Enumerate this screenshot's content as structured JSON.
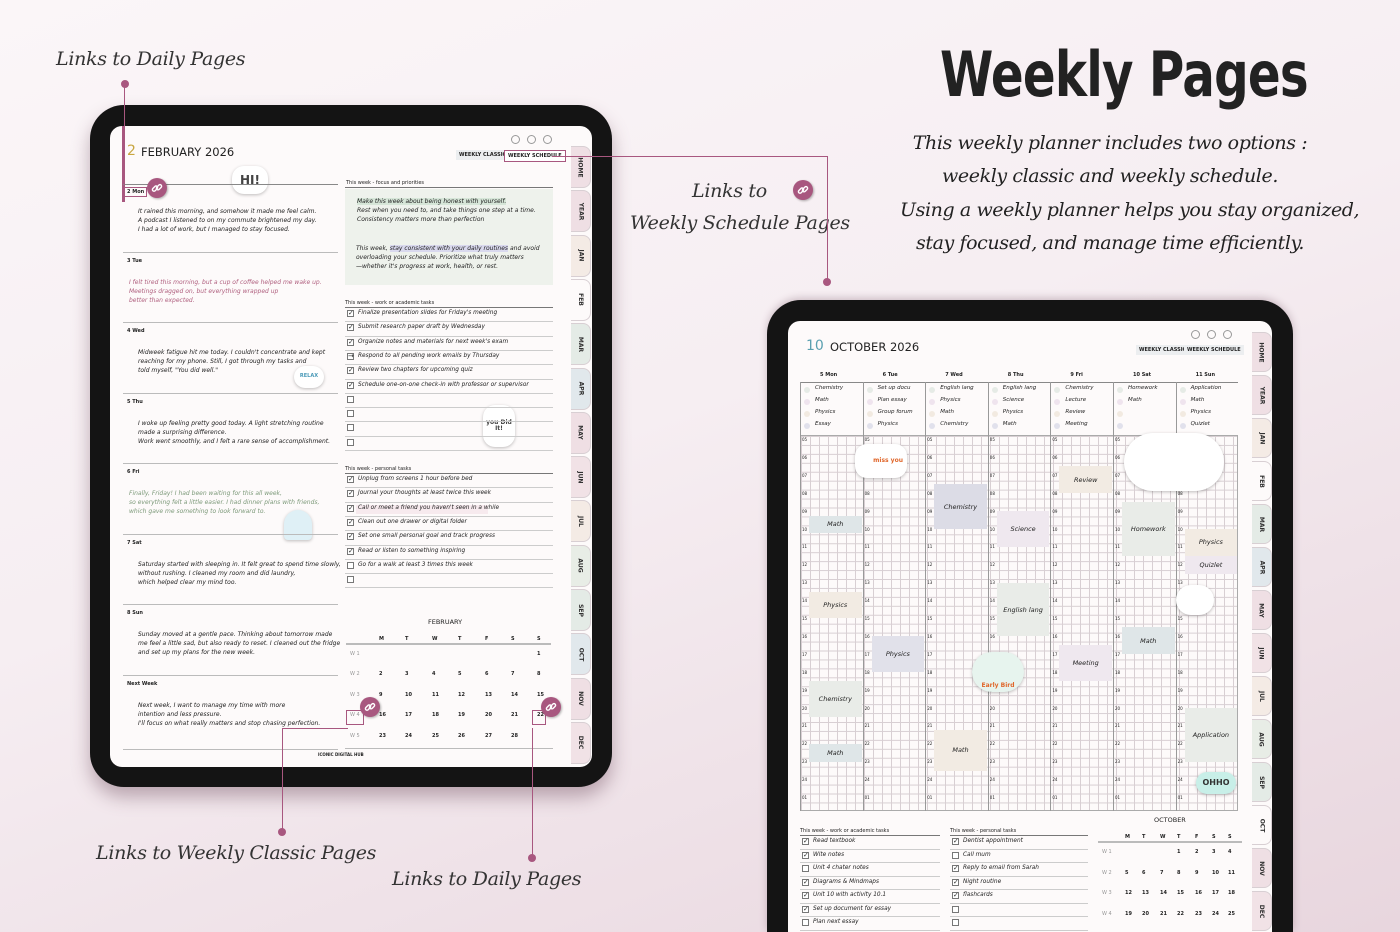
{
  "headline": {
    "title": "Weekly Pages",
    "lines": [
      "This weekly planner includes two options :",
      "weekly classic and weekly schedule.",
      "Using a weekly planner helps you stay organized,",
      "stay focused, and manage time efficiently."
    ]
  },
  "annotations": {
    "daily_top": "Links to Daily Pages",
    "schedule_1": "Links to",
    "schedule_2": "Weekly Schedule Pages",
    "classic": "Links to Weekly Classic Pages",
    "daily_bottom": "Links to Daily Pages"
  },
  "colors": {
    "accent": "#a8577f",
    "gold": "#c8a640",
    "teal": "#5aa0b0",
    "tue_text": "#b0607f",
    "fri_text": "#7d9a7a"
  },
  "stickers": [
    "HI!",
    "you Did It!",
    "RELAX",
    "OHHO",
    "Early Bird",
    "miss you"
  ],
  "tabs": [
    "HOME",
    "YEAR",
    "JAN",
    "FEB",
    "MAR",
    "APR",
    "MAY",
    "JUN",
    "JUL",
    "AUG",
    "SEP",
    "OCT",
    "NOV",
    "DEC"
  ],
  "classic": {
    "week_num": "2",
    "month_year": "FEBRUARY 2026",
    "active_tab": "FEB",
    "view_buttons": [
      "WEEKLY CLASSIC",
      "WEEKLY SCHEDULE"
    ],
    "days": [
      {
        "label": "2 Mon",
        "color": "dark",
        "lines": [
          "It rained this morning, and somehow it made me feel calm.",
          "A podcast I listened to on my commute brightened my day.",
          "I had a lot of work, but I managed to stay focused."
        ]
      },
      {
        "label": "3 Tue",
        "color": "tue",
        "lines": [
          "I felt tired this morning, but a cup of coffee helped me wake up.",
          "Meetings dragged on, but everything wrapped up",
          "better than expected."
        ]
      },
      {
        "label": "4 Wed",
        "color": "dark",
        "lines": [
          "Midweek fatigue hit me today. I couldn't concentrate and kept",
          "reaching for my phone. Still, I got through my tasks and",
          "told myself, \"You did well.\""
        ]
      },
      {
        "label": "5 Thu",
        "color": "dark",
        "lines": [
          "I woke up feeling pretty good today. A light stretching routine",
          "made a surprising difference.",
          "Work went smoothly, and I felt a rare sense of accomplishment."
        ]
      },
      {
        "label": "6 Fri",
        "color": "fri",
        "lines": [
          "Finally, Friday! I had been waiting for this all week,",
          "so everything felt a little easier. I had dinner plans with friends,",
          "which gave me something to look forward to."
        ]
      },
      {
        "label": "7 Sat",
        "color": "dark",
        "lines": [
          "Saturday started with sleeping in. It felt great to spend time slowly,",
          "without rushing. I cleaned my room and did laundry,",
          "which helped clear my mind too."
        ]
      },
      {
        "label": "8 Sun",
        "color": "dark",
        "lines": [
          "Sunday moved at a gentle pace. Thinking about tomorrow made",
          "me feel a little sad, but also ready to reset. I cleaned out the fridge",
          "and set up my plans for the new week."
        ]
      },
      {
        "label": "Next Week",
        "color": "dark",
        "lines": [
          "Next week, I want to manage my time with more",
          "intention and less pressure.",
          "I'll focus on what really matters and stop chasing perfection."
        ]
      }
    ],
    "focus": {
      "heading": "This week - focus and priorities",
      "p1": [
        "Make this week about being honest with yourself.",
        "Rest when you need to, and take things one step at a time.",
        "Consistency matters more than perfection"
      ],
      "p2_pre": "This week, ",
      "p2_mark": "stay consistent with your daily routines",
      "p2_post": " and avoid",
      "p2": [
        "overloading your schedule. Prioritize what truly matters",
        "—whether it's progress at work, health, or rest."
      ]
    },
    "work_tasks": {
      "heading": "This week - work or academic tasks",
      "items": [
        {
          "text": "Finalize presentation slides for Friday's meeting",
          "state": "done"
        },
        {
          "text": "Submit research paper draft by Wednesday",
          "state": "done"
        },
        {
          "text": "Organize notes and materials for next week's exam",
          "state": "done"
        },
        {
          "text": "Respond to all pending work emails by Thursday",
          "state": "migrated"
        },
        {
          "text": "Review two chapters for upcoming quiz",
          "state": "done"
        },
        {
          "text": "Schedule one-on-one check-in with professor or supervisor",
          "state": "done"
        },
        {
          "text": "",
          "state": "open"
        },
        {
          "text": "",
          "state": "open"
        },
        {
          "text": "",
          "state": "open"
        },
        {
          "text": "",
          "state": "open"
        }
      ]
    },
    "personal_tasks": {
      "heading": "This week - personal tasks",
      "items": [
        {
          "text": "Unplug from screens 1 hour before bed",
          "state": "done"
        },
        {
          "text": "Journal your thoughts at least twice this week",
          "state": "done"
        },
        {
          "text": "Call or meet a friend you haven't seen in a while",
          "state": "done"
        },
        {
          "text": "Clean out one drawer or digital folder",
          "state": "done"
        },
        {
          "text": "Set one small personal goal and track progress",
          "state": "done"
        },
        {
          "text": "Read or listen to something inspiring",
          "state": "done"
        },
        {
          "text": "Go for a walk at least 3 times this week",
          "state": "open"
        },
        {
          "text": "",
          "state": "open"
        }
      ]
    },
    "calendar": {
      "month": "FEBRUARY",
      "weekdays": [
        "M",
        "T",
        "W",
        "T",
        "F",
        "S",
        "S"
      ],
      "weeks": [
        {
          "label": "W 1",
          "days": [
            "",
            "",
            "",
            "",
            "",
            "",
            "1"
          ]
        },
        {
          "label": "W 2",
          "days": [
            "2",
            "3",
            "4",
            "5",
            "6",
            "7",
            "8"
          ]
        },
        {
          "label": "W 3",
          "days": [
            "9",
            "10",
            "11",
            "12",
            "13",
            "14",
            "15"
          ]
        },
        {
          "label": "W 4",
          "days": [
            "16",
            "17",
            "18",
            "19",
            "20",
            "21",
            "22"
          ]
        },
        {
          "label": "W 5",
          "days": [
            "23",
            "24",
            "25",
            "26",
            "27",
            "28",
            ""
          ]
        }
      ]
    },
    "footer": "ICONIC DIGITAL HUB"
  },
  "schedule": {
    "week_num": "10",
    "month_year": "OCTOBER 2026",
    "active_tab": "OCT",
    "view_buttons": [
      "WEEKLY CLASSIC",
      "WEEKLY SCHEDULE"
    ],
    "hours": [
      "05",
      "06",
      "07",
      "08",
      "09",
      "10",
      "11",
      "12",
      "13",
      "14",
      "15",
      "16",
      "17",
      "18",
      "19",
      "20",
      "21",
      "22",
      "23",
      "24",
      "01"
    ],
    "dot_colors": [
      "#e6ebe6",
      "#efe4ee",
      "#f2eae1",
      "#e1e1ec"
    ],
    "days": [
      {
        "label": "5  Mon",
        "todos": [
          "Chemistry",
          "Math",
          "Physics",
          "Essay"
        ],
        "events": [
          {
            "title": "Math",
            "start": 9.5,
            "end": 10.5,
            "color": "#dfe6e8"
          },
          {
            "title": "Physics",
            "start": 13.75,
            "end": 15.25,
            "color": "#f2ebe3"
          },
          {
            "title": "Chemistry",
            "start": 18.75,
            "end": 20.75,
            "color": "#e9ece8"
          },
          {
            "title": "Math",
            "start": 22.25,
            "end": 23.25,
            "color": "#dfe6e8"
          }
        ]
      },
      {
        "label": "6  Tue",
        "todos": [
          "Set up docu",
          "Plan essay",
          "Group forum",
          "Physics"
        ],
        "events": [
          {
            "title": "Physics",
            "start": 16.25,
            "end": 18.25,
            "color": "#e1e1ea"
          }
        ]
      },
      {
        "label": "7  Wed",
        "todos": [
          "English lang",
          "Physics",
          "Math",
          "Chemistry"
        ],
        "events": [
          {
            "title": "Chemistry",
            "start": 7.75,
            "end": 10.25,
            "color": "#dcdce6"
          },
          {
            "title": "Math",
            "start": 21.5,
            "end": 23.75,
            "color": "#f2ebe3"
          }
        ]
      },
      {
        "label": "8  Thu",
        "todos": [
          "English lang",
          "Science",
          "Physics",
          "Math"
        ],
        "events": [
          {
            "title": "Science",
            "start": 9.25,
            "end": 11.25,
            "color": "#efe8ef"
          },
          {
            "title": "English lang",
            "start": 13.25,
            "end": 16.25,
            "color": "#e9ece8"
          }
        ]
      },
      {
        "label": "9  Fri",
        "todos": [
          "Chemistry",
          "Lecture",
          "Review",
          "Meeting"
        ],
        "events": [
          {
            "title": "Review",
            "start": 6.75,
            "end": 8.25,
            "color": "#f2ebe3"
          },
          {
            "title": "Meeting",
            "start": 16.75,
            "end": 18.75,
            "color": "#efe8ef"
          }
        ]
      },
      {
        "label": "10 Sat",
        "todos": [
          "Homework",
          "Math",
          "",
          ""
        ],
        "events": [
          {
            "title": "Homework",
            "start": 8.75,
            "end": 11.75,
            "color": "#e9ece8"
          },
          {
            "title": "Math",
            "start": 15.75,
            "end": 17.25,
            "color": "#dfe6e8"
          }
        ]
      },
      {
        "label": "11  Sun",
        "todos": [
          "Application",
          "Math",
          "Physics",
          "Quizlet"
        ],
        "events": [
          {
            "title": "Physics",
            "start": 10.25,
            "end": 11.75,
            "color": "#f2ebe3"
          },
          {
            "title": "Quizlet",
            "start": 11.75,
            "end": 12.75,
            "color": "#efe8ef"
          },
          {
            "title": "Application",
            "start": 20.25,
            "end": 23.25,
            "color": "#e9ece8"
          }
        ]
      }
    ],
    "work_tasks": {
      "heading": "This week - work or academic tasks",
      "items": [
        {
          "text": "Read textbook",
          "state": "done"
        },
        {
          "text": "Wite notes",
          "state": "done"
        },
        {
          "text": "Unit 4 chater notes",
          "state": "open"
        },
        {
          "text": "Diagrams & Mindmaps",
          "state": "done"
        },
        {
          "text": "Unit 10 with activity 10.1",
          "state": "done"
        },
        {
          "text": "Set up document for essay",
          "state": "done"
        },
        {
          "text": "Plan next essay",
          "state": "open"
        }
      ]
    },
    "personal_tasks": {
      "heading": "This week - personal tasks",
      "items": [
        {
          "text": "Dentist appointment",
          "state": "done"
        },
        {
          "text": "Call mum",
          "state": "open"
        },
        {
          "text": "Reply to email from Sarah",
          "state": "done"
        },
        {
          "text": "Night routine",
          "state": "done"
        },
        {
          "text": "flashcards",
          "state": "done"
        },
        {
          "text": "",
          "state": "open"
        },
        {
          "text": "",
          "state": "open"
        }
      ]
    },
    "calendar": {
      "month": "OCTOBER",
      "weekdays": [
        "M",
        "T",
        "W",
        "T",
        "F",
        "S",
        "S"
      ],
      "weeks": [
        {
          "label": "W 1",
          "days": [
            "",
            "",
            "",
            "1",
            "2",
            "3",
            "4"
          ]
        },
        {
          "label": "W 2",
          "days": [
            "5",
            "6",
            "7",
            "8",
            "9",
            "10",
            "11"
          ]
        },
        {
          "label": "W 3",
          "days": [
            "12",
            "13",
            "14",
            "15",
            "16",
            "17",
            "18"
          ]
        },
        {
          "label": "W 4",
          "days": [
            "19",
            "20",
            "21",
            "22",
            "23",
            "24",
            "25"
          ]
        }
      ]
    }
  }
}
